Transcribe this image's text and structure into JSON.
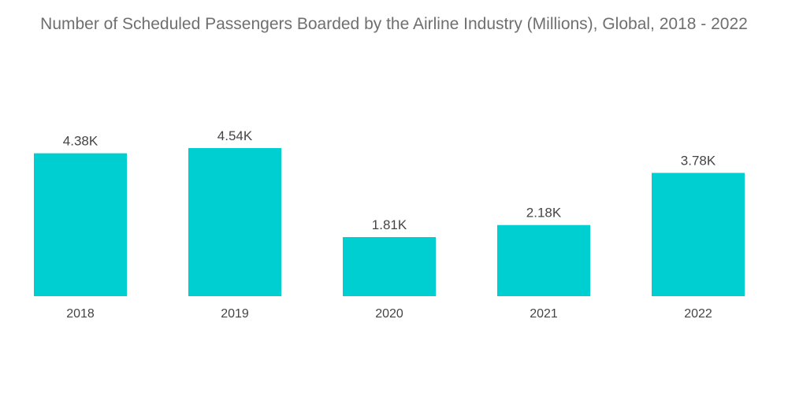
{
  "chart_data": {
    "type": "bar",
    "title": "Number of Scheduled Passengers Boarded by the Airline Industry (Millions), Global, 2018 - 2022",
    "categories": [
      "2018",
      "2019",
      "2020",
      "2021",
      "2022"
    ],
    "values": [
      4380,
      4540,
      1810,
      2180,
      3780
    ],
    "data_labels": [
      "4.38K",
      "4.54K",
      "1.81K",
      "2.18K",
      "3.78K"
    ],
    "xlabel": "",
    "ylabel": "",
    "ylim": [
      0,
      4540
    ],
    "grid": false,
    "legend": "none",
    "bar_color": "#00cfd1"
  }
}
